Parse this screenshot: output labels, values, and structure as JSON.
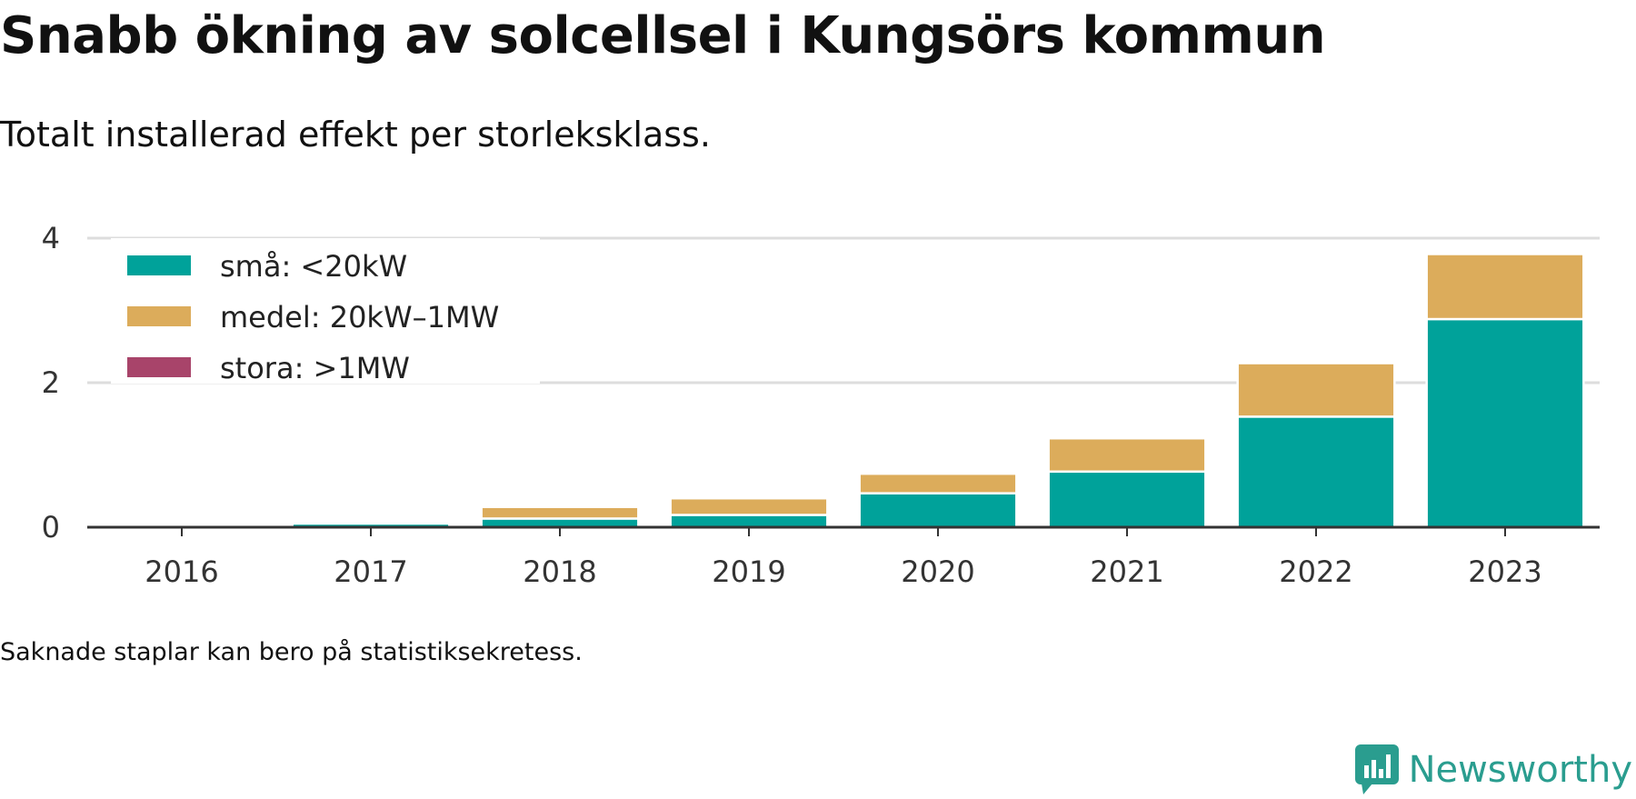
{
  "title": "Snabb ökning av solcellsel i Kungsörs kommun",
  "subtitle": "Totalt installerad effekt per storleksklass.",
  "footnote": "Saknade staplar kan bero på statistiksekretess.",
  "brand": {
    "name": "Newsworthy",
    "icon": "newsworthy-logo-icon"
  },
  "chart_data": {
    "type": "bar",
    "stacked": true,
    "categories": [
      "2016",
      "2017",
      "2018",
      "2019",
      "2020",
      "2021",
      "2022",
      "2023"
    ],
    "series": [
      {
        "name": "små: <20kW",
        "color": "#00a29a",
        "values": [
          0.03,
          0.05,
          0.12,
          0.17,
          0.47,
          0.77,
          1.53,
          2.88
        ]
      },
      {
        "name": "medel: 20kW–1MW",
        "color": "#dcac5b",
        "values": [
          0.0,
          0.0,
          0.16,
          0.23,
          0.27,
          0.46,
          0.74,
          0.9
        ]
      },
      {
        "name": "stora: >1MW",
        "color": "#a8446a",
        "values": [
          0,
          0,
          0,
          0,
          0,
          0,
          0,
          0
        ]
      }
    ],
    "ylim": [
      0,
      4
    ],
    "yticks": [
      "0",
      "2",
      "4"
    ],
    "grid": true,
    "legend_position": "top-left"
  }
}
